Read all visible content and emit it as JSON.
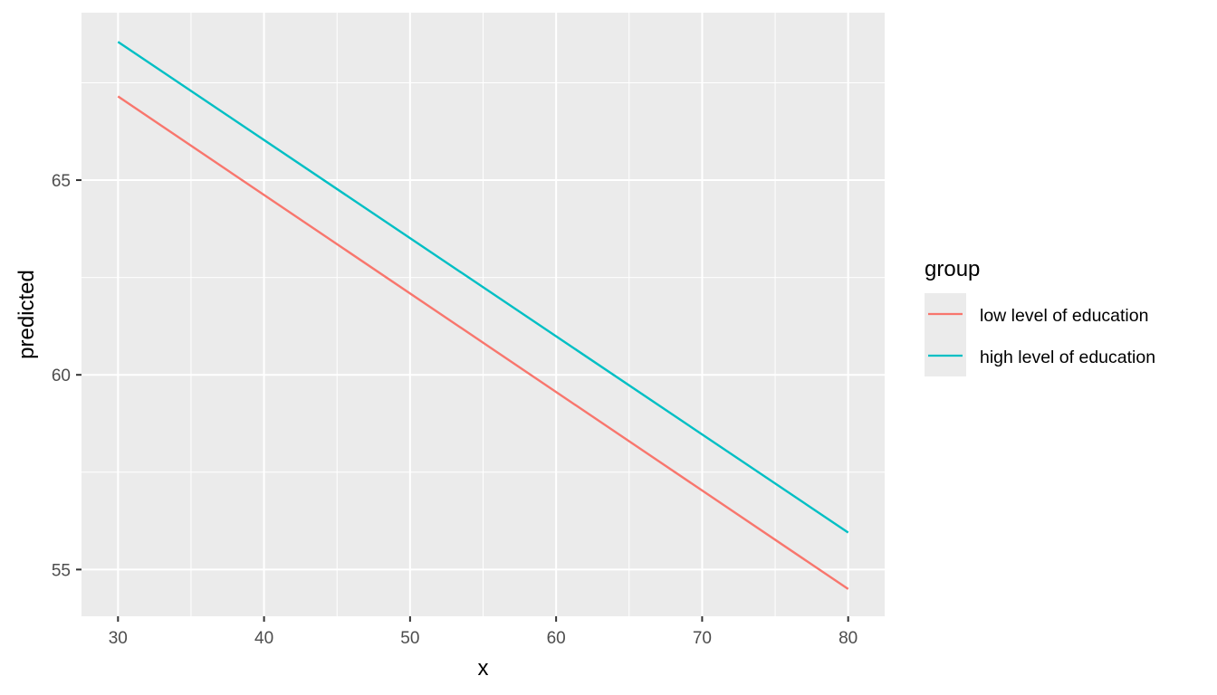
{
  "chart_data": {
    "type": "line",
    "xlabel": "x",
    "ylabel": "predicted",
    "xlim": [
      27.5,
      82.5
    ],
    "ylim": [
      53.8,
      69.3
    ],
    "x_ticks": [
      30,
      40,
      50,
      60,
      70,
      80
    ],
    "y_ticks": [
      55,
      60,
      65
    ],
    "grid": true,
    "legend": {
      "title": "group",
      "position": "right"
    },
    "series": [
      {
        "name": "low level of education",
        "color": "#F8766D",
        "x": [
          30,
          80
        ],
        "y": [
          67.15,
          54.5
        ]
      },
      {
        "name": "high level of education",
        "color": "#00BFC4",
        "x": [
          30,
          80
        ],
        "y": [
          68.55,
          55.95
        ]
      }
    ]
  }
}
